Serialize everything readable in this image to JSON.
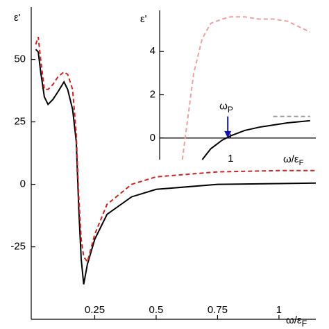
{
  "chart_data": [
    {
      "type": "line",
      "y_label": {
        "text": "ε'"
      },
      "x_label": {
        "text": "ω/ε",
        "sub": "F"
      },
      "x": [
        0.01,
        0.02,
        0.03,
        0.045,
        0.06,
        0.08,
        0.1,
        0.125,
        0.14,
        0.16,
        0.175,
        0.185,
        0.195,
        0.205,
        0.22,
        0.25,
        0.3,
        0.4,
        0.5,
        0.75,
        1,
        1.15
      ],
      "series": [
        {
          "color": "#000000",
          "dash": false,
          "values": [
            54,
            53,
            45,
            35,
            32,
            34,
            37,
            41,
            38,
            30,
            17,
            -10,
            -30,
            -40,
            -32,
            -22,
            -12,
            -5,
            -2,
            0,
            0.3,
            0.5
          ]
        },
        {
          "color": "#d42020",
          "dash": true,
          "values": [
            56,
            59,
            50,
            38,
            38,
            40,
            43,
            45,
            44,
            38,
            20,
            -5,
            -22,
            -29,
            -31,
            -20,
            -8,
            0,
            3,
            5,
            5.5,
            5.5
          ]
        }
      ],
      "xlim": [
        0,
        1.15
      ],
      "ylim": [
        -54,
        71
      ],
      "xticks": [
        0.25,
        0.5,
        0.75,
        1
      ],
      "yticks": [
        -25,
        0,
        25,
        50
      ]
    },
    {
      "type": "line",
      "y_label": {
        "text": "ε'"
      },
      "x_label": {
        "text": "ω/ε",
        "sub": "F"
      },
      "annotation": {
        "text": "ω",
        "sub": "P",
        "x": 0.99,
        "color": "#1010c0"
      },
      "x": [
        0.83,
        0.85,
        0.87,
        0.9,
        0.93,
        0.97,
        1,
        1.05,
        1.1,
        1.15,
        1.2,
        1.28
      ],
      "series": [
        {
          "color": "#f0a0a0",
          "dash": true,
          "values": [
            -1,
            1,
            3,
            4.6,
            5.3,
            5.5,
            5.6,
            5.6,
            5.5,
            5.5,
            5.4,
            4.9
          ]
        },
        {
          "color": "#000000",
          "dash": false,
          "values": [
            null,
            null,
            null,
            -1,
            -0.5,
            -0.1,
            0.1,
            0.35,
            0.5,
            0.6,
            0.7,
            0.8
          ]
        },
        {
          "color": "#999999",
          "dash": true,
          "values": [
            null,
            null,
            null,
            null,
            null,
            null,
            null,
            null,
            null,
            1,
            1,
            1
          ]
        }
      ],
      "xlim": [
        0.75,
        1.3
      ],
      "ylim": [
        -1,
        5.9
      ],
      "xticks": [
        1
      ],
      "yticks": [
        0,
        2,
        4
      ]
    }
  ]
}
